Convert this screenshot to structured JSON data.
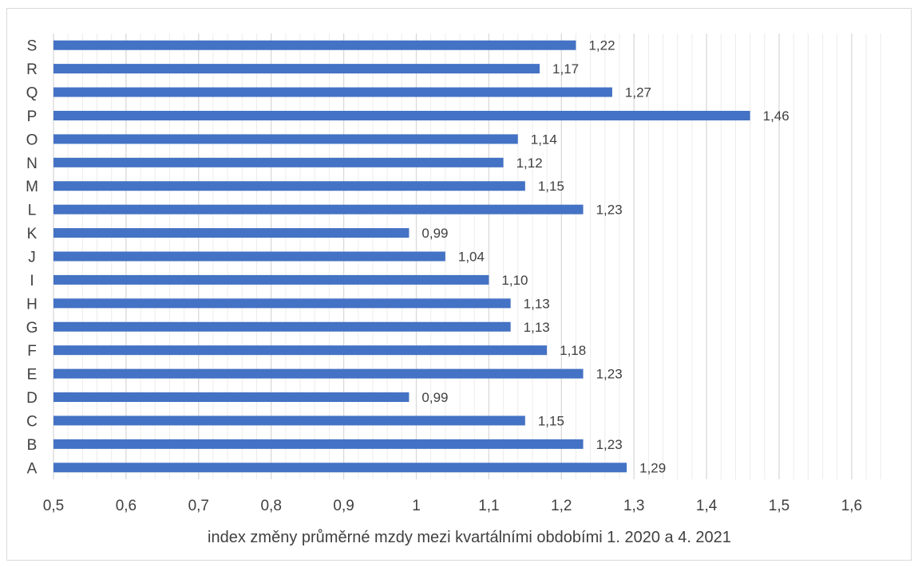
{
  "chart_data": {
    "type": "bar",
    "orientation": "horizontal",
    "categories": [
      "A",
      "B",
      "C",
      "D",
      "E",
      "F",
      "G",
      "H",
      "I",
      "J",
      "K",
      "L",
      "M",
      "N",
      "O",
      "P",
      "Q",
      "R",
      "S"
    ],
    "values": [
      1.29,
      1.23,
      1.15,
      0.99,
      1.23,
      1.18,
      1.13,
      1.13,
      1.1,
      1.04,
      0.99,
      1.23,
      1.15,
      1.12,
      1.14,
      1.46,
      1.27,
      1.17,
      1.22
    ],
    "value_labels": [
      "1,29",
      "1,23",
      "1,15",
      "0,99",
      "1,23",
      "1,18",
      "1,13",
      "1,13",
      "1,10",
      "1,04",
      "0,99",
      "1,23",
      "1,15",
      "1,12",
      "1,14",
      "1,46",
      "1,27",
      "1,17",
      "1,22"
    ],
    "xlim": [
      0.5,
      1.65
    ],
    "x_ticks": [
      0.5,
      0.6,
      0.7,
      0.8,
      0.9,
      1.0,
      1.1,
      1.2,
      1.3,
      1.4,
      1.5,
      1.6
    ],
    "x_tick_labels": [
      "0,5",
      "0,6",
      "0,7",
      "0,8",
      "0,9",
      "1",
      "1,1",
      "1,2",
      "1,3",
      "1,4",
      "1,5",
      "1,6"
    ],
    "xlabel": "index změny průměrné mzdy mezi kvartálními obdobími 1. 2020 a 4. 2021",
    "title": "",
    "ylabel": "",
    "grid": true,
    "legend": "none",
    "bar_color": "#4472c4",
    "major_grid_color": "#d9d9d9",
    "minor_grid_color": "#ececec"
  }
}
